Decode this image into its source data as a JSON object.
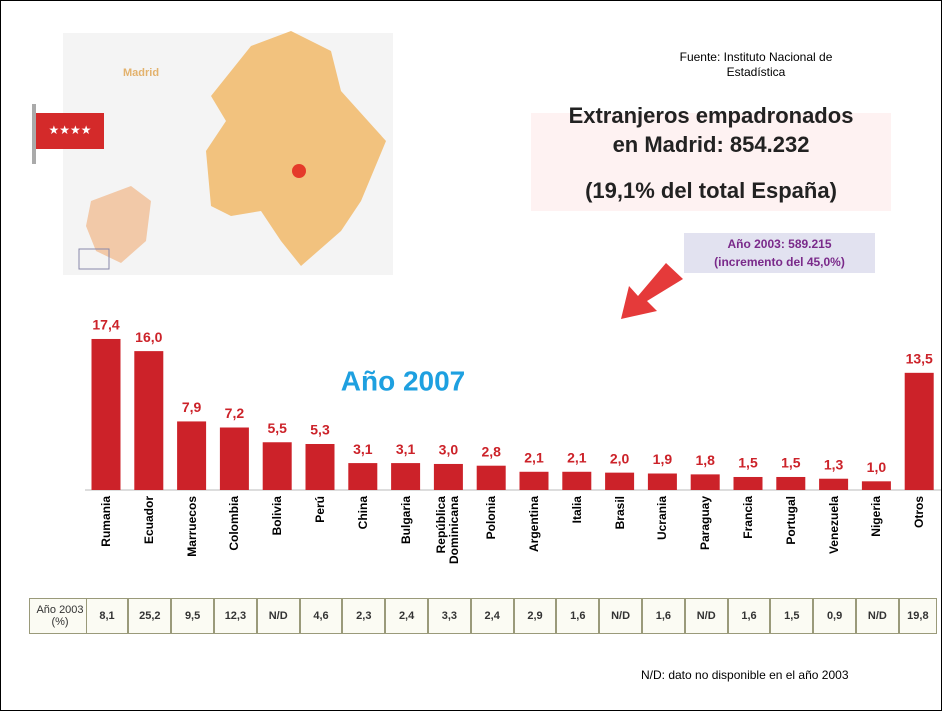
{
  "source": [
    "Fuente: Instituto Nacional de",
    "Estadística"
  ],
  "headline": [
    "Extranjeros empadronados",
    "en Madrid: 854.232"
  ],
  "subheadline": "(19,1% del total España)",
  "annotation": [
    "Año 2003: 589.215",
    "(incremento del 45,0%)"
  ],
  "map": {
    "label": "Madrid"
  },
  "chart_data": {
    "type": "bar",
    "title": "Año 2007",
    "color": "#cc2229",
    "categories": [
      "Rumania",
      "Ecuador",
      "Marruecos",
      "Colombia",
      "Bolivia",
      "Perú",
      "China",
      "Bulgaria",
      "República Dominicana",
      "Polonia",
      "Argentina",
      "Italia",
      "Brasil",
      "Ucrania",
      "Paraguay",
      "Francia",
      "Portugal",
      "Venezuela",
      "Nigeria",
      "Otros"
    ],
    "values": [
      17.4,
      16.0,
      7.9,
      7.2,
      5.5,
      5.3,
      3.1,
      3.1,
      3.0,
      2.8,
      2.1,
      2.1,
      2.0,
      1.9,
      1.8,
      1.5,
      1.5,
      1.3,
      1.0,
      13.5
    ],
    "value_labels": [
      "17,4",
      "16,0",
      "7,9",
      "7,2",
      "5,5",
      "5,3",
      "3,1",
      "3,1",
      "3,0",
      "2,8",
      "2,1",
      "2,1",
      "2,0",
      "1,9",
      "1,8",
      "1,5",
      "1,5",
      "1,3",
      "1,0",
      "13,5"
    ]
  },
  "table": {
    "header": "Año 2003 (%)",
    "cells": [
      "8,1",
      "25,2",
      "9,5",
      "12,3",
      "N/D",
      "4,6",
      "2,3",
      "2,4",
      "3,3",
      "2,4",
      "2,9",
      "1,6",
      "N/D",
      "1,6",
      "N/D",
      "1,6",
      "1,5",
      "0,9",
      "N/D",
      "19,8"
    ]
  },
  "footnote": "N/D: dato no disponible en el año 2003"
}
